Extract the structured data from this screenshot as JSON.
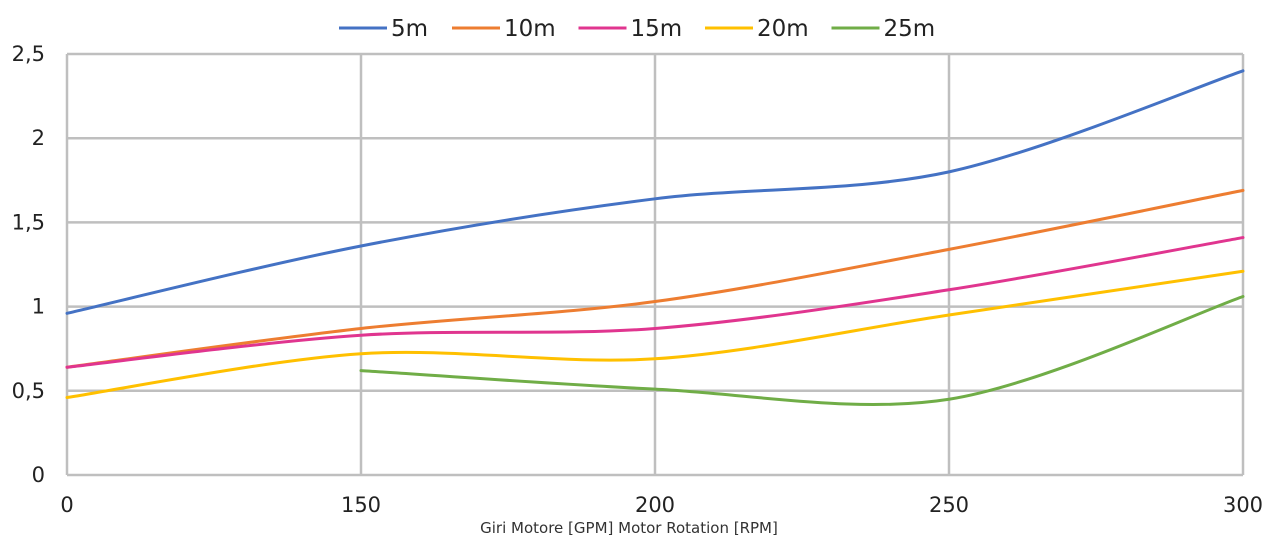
{
  "chart_data": {
    "type": "line",
    "categories": [
      "0",
      "150",
      "200",
      "250",
      "300"
    ],
    "xlabel": "Giri Motore [GPM]    Motor Rotation [RPM]",
    "ylabel": "",
    "ylim": [
      0,
      2.5
    ],
    "yticks": [
      "0",
      "0,5",
      "1",
      "1,5",
      "2",
      "2,5"
    ],
    "grid": true,
    "legend_position": "top",
    "series": [
      {
        "name": "5m",
        "color": "#4472C4",
        "values": [
          0.96,
          1.36,
          1.64,
          1.8,
          2.4
        ]
      },
      {
        "name": "10m",
        "color": "#ED7D31",
        "values": [
          0.64,
          0.87,
          1.03,
          1.34,
          1.69
        ]
      },
      {
        "name": "15m",
        "color": "#E0358F",
        "values": [
          0.64,
          0.83,
          0.87,
          1.1,
          1.41
        ]
      },
      {
        "name": "20m",
        "color": "#FFC000",
        "values": [
          0.46,
          0.72,
          0.69,
          0.95,
          1.21
        ]
      },
      {
        "name": "25m",
        "color": "#70AD47",
        "values": [
          null,
          0.62,
          0.51,
          0.45,
          1.06
        ]
      }
    ]
  }
}
